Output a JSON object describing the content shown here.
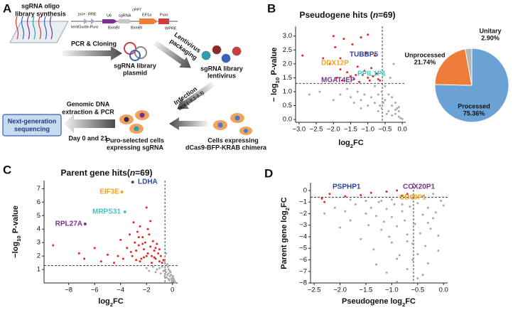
{
  "panel_labels": [
    "A",
    "B",
    "C",
    "D"
  ],
  "diagram": {
    "title": [
      "sgRNA oligo",
      "library synthesis"
    ],
    "vector": [
      "psi+",
      "RRE",
      "U6",
      "sgRNA",
      "cPPT",
      "EF1a",
      "Puro",
      "lentiGuide-Puro",
      "BsmBI",
      "BsmBI",
      "WPRE"
    ],
    "cloning": "PCR & Cloning",
    "plasmid": [
      "sgRNA library",
      "plasmid"
    ],
    "packaging": [
      "Lentivirus",
      "packaging"
    ],
    "lentivirus": [
      "sgRNA library",
      "lentivirus"
    ],
    "infection": [
      "Infection",
      "MOI (~0.2-0.3)"
    ],
    "host_cells": [
      "Cells expressing",
      "dCas9-BFP-KRAB chimera"
    ],
    "selected_cells": [
      "Puro-selected cells",
      "expressing sgRNA"
    ],
    "extraction": [
      "Genomic DNA",
      "extraction & PCR"
    ],
    "timepoints": "Day 0 and 21",
    "sequencing": [
      "Next-generation",
      "sequencing"
    ]
  },
  "chart_data": [
    {
      "type": "scatter",
      "title": [
        "Pseudogene hits (",
        "n",
        "=69)"
      ],
      "xlabel": [
        "log",
        "2",
        "FC"
      ],
      "ylabel": [
        "− log",
        "10",
        " P-value"
      ],
      "xlim": [
        -3.1,
        0.1
      ],
      "ylim": [
        -0.1,
        3.35
      ],
      "xticks": [
        {
          "value": -3,
          "label": "−3.0"
        },
        {
          "value": -2.5,
          "label": "−2.5"
        },
        {
          "value": -2,
          "label": "−2.0"
        },
        {
          "value": -1.5,
          "label": "−1.5"
        },
        {
          "value": -1,
          "label": "−1.0"
        },
        {
          "value": -0.5,
          "label": "−0.5"
        },
        {
          "value": 0,
          "label": "0.0"
        }
      ],
      "yticks": [
        {
          "value": 0,
          "label": "0.0"
        },
        0.5,
        {
          "value": 1,
          "label": "1.0"
        },
        1.5,
        {
          "value": 2,
          "label": "2.0"
        },
        2.5,
        {
          "value": 3,
          "label": "3.0"
        }
      ],
      "thresholds": {
        "x": -0.58,
        "y": 1.3
      },
      "series": [
        {
          "color": "#a9a9a9",
          "x": [
            -2.7,
            -2.4,
            -2.0,
            -1.8,
            -1.6,
            -1.5,
            -1.4,
            -1.3,
            -1.2,
            -1.1,
            -1.0,
            -0.9,
            -0.8,
            -0.7,
            -0.6,
            -0.5,
            -0.4,
            -0.3,
            -0.2,
            -0.1,
            -0.05,
            -0.5,
            -0.4,
            -0.3,
            -0.2,
            -0.1,
            -0.6,
            -0.8,
            -0.7,
            -0.35,
            -0.25,
            -0.15,
            -1.2,
            -0.45,
            -0.55,
            -0.3,
            -0.2,
            -0.1,
            0.0,
            -0.65
          ],
          "y": [
            0.9,
            1.0,
            0.7,
            0.9,
            1.1,
            0.8,
            0.6,
            1.0,
            0.7,
            0.9,
            0.5,
            0.8,
            0.6,
            0.9,
            0.4,
            0.7,
            0.3,
            0.5,
            0.2,
            0.1,
            0.05,
            1.2,
            0.9,
            0.8,
            0.6,
            0.3,
            1.0,
            1.2,
            0.3,
            1.5,
            2.0,
            0.4,
            0.4,
            0.2,
            0.6,
            0.15,
            0.35,
            0.45,
            0.02,
            0.5
          ]
        },
        {
          "color": "#e8281e",
          "x": [
            -2.9,
            -2.1,
            -2.0,
            -1.95,
            -1.9,
            -1.8,
            -1.75,
            -1.7,
            -1.6,
            -1.5,
            -1.45,
            -1.4,
            -1.3,
            -1.25,
            -1.2,
            -1.15,
            -1.1,
            -1.05,
            -1.0,
            -0.95,
            -0.9,
            -0.85,
            -0.8,
            -0.75,
            -0.7,
            -0.65,
            -1.35,
            -1.8,
            -2.3,
            -1.0
          ],
          "y": [
            2.3,
            2.0,
            3.0,
            2.6,
            1.5,
            2.2,
            1.4,
            2.9,
            1.7,
            1.55,
            2.7,
            1.45,
            1.9,
            1.35,
            2.95,
            1.6,
            1.75,
            2.4,
            1.5,
            1.4,
            1.85,
            1.55,
            2.3,
            1.65,
            1.45,
            1.4,
            1.6,
            1.8,
            2.2,
            3.05
          ]
        }
      ],
      "annotations": [
        {
          "text": "TUBBP5",
          "color": "#2b3f9e"
        },
        {
          "text": "DDX12P",
          "color": "#f5a21c"
        },
        {
          "text": "PPIL1P1",
          "color": "#3fc6c0"
        },
        {
          "text": "MGAT4EP",
          "color": "#7b2f92"
        }
      ]
    },
    {
      "type": "pie",
      "categories": [
        "Processed",
        "Unprocessed",
        "Unitary"
      ],
      "values": [
        75.36,
        21.74,
        2.9
      ],
      "value_labels": [
        "75.36%",
        "21.74%",
        "2.90%"
      ],
      "colors": [
        "#6aa2d6",
        "#ef7d3a",
        "#b5b5b5"
      ]
    },
    {
      "type": "scatter",
      "title": [
        "Parent gene hits(",
        "n",
        "=69)"
      ],
      "xlabel": [
        "log",
        "2",
        "FC"
      ],
      "ylabel": [
        "−log",
        "10",
        " P-value"
      ],
      "xlim": [
        -9.9,
        0.4
      ],
      "ylim": [
        0,
        7.6
      ],
      "xticks": [
        {
          "value": -8,
          "label": "−8"
        },
        {
          "value": -6,
          "label": "−6"
        },
        {
          "value": -4,
          "label": "−4"
        },
        {
          "value": -2,
          "label": "−2"
        },
        0
      ],
      "yticks": [
        1,
        2,
        3,
        4,
        5,
        6,
        7
      ],
      "thresholds": {
        "x": -0.58,
        "y": 1.3
      },
      "series": [
        {
          "color": "#a9a9a9",
          "x": [
            -2.0,
            -1.8,
            -1.5,
            -1.3,
            -1.2,
            -1.0,
            -0.9,
            -0.8,
            -0.7,
            -0.6,
            -0.5,
            -0.4,
            -0.3,
            -0.2,
            -0.1,
            0.0,
            0.1,
            0.2,
            -0.5,
            -0.4,
            -0.3,
            -0.2,
            -0.1,
            0.0,
            0.1,
            -0.6,
            -0.45,
            -0.25,
            -0.05,
            0.15,
            -0.35,
            -0.15,
            0.05,
            -0.55,
            -0.3
          ],
          "y": [
            1.1,
            0.9,
            1.2,
            0.8,
            1.0,
            1.1,
            0.7,
            1.2,
            0.9,
            1.6,
            0.8,
            0.6,
            1.0,
            0.5,
            0.3,
            0.2,
            0.1,
            0.05,
            2.2,
            1.4,
            0.7,
            0.9,
            0.6,
            0.4,
            0.3,
            0.5,
            0.4,
            0.2,
            0.1,
            0.15,
            1.2,
            0.8,
            0.5,
            1.0,
            0.3
          ]
        },
        {
          "color": "#e8281e",
          "x": [
            -9.2,
            -7.2,
            -6.8,
            -6.0,
            -5.5,
            -5.0,
            -4.5,
            -4.2,
            -4.0,
            -3.8,
            -3.5,
            -3.3,
            -3.1,
            -3.0,
            -2.9,
            -2.8,
            -2.7,
            -2.6,
            -2.5,
            -2.4,
            -2.3,
            -2.2,
            -2.1,
            -2.0,
            -1.9,
            -1.8,
            -1.7,
            -1.6,
            -1.5,
            -1.4,
            -1.3,
            -1.2,
            -1.1,
            -1.0,
            -0.9,
            -0.8,
            -0.7,
            -2.5,
            -2.2,
            -1.9,
            -1.6,
            -1.3,
            -3.2,
            -2.6,
            -2.0,
            -1.4,
            -1.0,
            -2.8,
            -2.3,
            -1.7
          ],
          "y": [
            2.8,
            2.2,
            1.8,
            2.6,
            1.6,
            2.1,
            1.5,
            2.0,
            3.2,
            1.8,
            2.6,
            3.6,
            2.0,
            4.5,
            3.0,
            2.4,
            3.8,
            2.8,
            4.2,
            1.8,
            3.4,
            2.5,
            3.0,
            5.6,
            2.2,
            3.6,
            2.7,
            2.0,
            3.1,
            2.4,
            1.8,
            2.9,
            2.2,
            1.6,
            2.0,
            1.5,
            1.7,
            1.6,
            1.9,
            4.0,
            1.5,
            2.6,
            2.3,
            3.4,
            2.0,
            1.9,
            2.5,
            1.7,
            2.9,
            4.6
          ]
        }
      ],
      "annotations": [
        {
          "text": "LDHA",
          "color": "#2b4ba0",
          "x": -3.07,
          "y": 7.49
        },
        {
          "text": "EIF3E",
          "color": "#f5a21c",
          "x": -3.9,
          "y": 6.75
        },
        {
          "text": "MRPS31",
          "color": "#3fc6c0",
          "x": -3.67,
          "y": 5.28
        },
        {
          "text": "RPL27A",
          "color": "#7b2f92",
          "x": -6.73,
          "y": 4.38
        }
      ]
    },
    {
      "type": "scatter",
      "xlabel": [
        "Pseudogene log",
        "2",
        "FC"
      ],
      "ylabel": [
        "Parent gene log",
        "2",
        "FC"
      ],
      "xlim": [
        -2.57,
        0.08
      ],
      "ylim": [
        -8,
        0.67
      ],
      "xticks": [
        {
          "value": -2.5,
          "label": "−2.5"
        },
        {
          "value": -2,
          "label": "−2.0"
        },
        {
          "value": -1.5,
          "label": "−1.5"
        },
        {
          "value": -1,
          "label": "−1.0"
        },
        {
          "value": -0.5,
          "label": "−0.5"
        },
        {
          "value": 0,
          "label": "0.0"
        }
      ],
      "yticks": [
        0,
        {
          "value": -1,
          "label": "−1"
        },
        {
          "value": -2,
          "label": "−2"
        },
        {
          "value": -3,
          "label": "−3"
        },
        {
          "value": -4,
          "label": "−4"
        },
        {
          "value": -5,
          "label": "−5"
        },
        {
          "value": -6,
          "label": "−6"
        },
        {
          "value": -7,
          "label": "−7"
        },
        {
          "value": -8,
          "label": "−8"
        }
      ],
      "thresholds": {
        "x": -0.58,
        "y": -0.58
      },
      "series": [
        {
          "color": "#a9a9a9",
          "x": [
            -2.3,
            -2.1,
            -2.0,
            -1.9,
            -1.8,
            -1.7,
            -1.6,
            -1.5,
            -1.45,
            -1.4,
            -1.35,
            -1.3,
            -1.25,
            -1.2,
            -1.15,
            -1.1,
            -1.05,
            -1.0,
            -0.95,
            -0.9,
            -0.85,
            -0.8,
            -0.75,
            -0.7,
            -0.65,
            -0.6,
            -0.55,
            -0.5,
            -0.45,
            -0.4,
            -0.35,
            -0.3,
            -0.25,
            -0.2,
            -0.15,
            -0.1,
            -0.05,
            0.0,
            -1.3,
            -1.1,
            -0.9,
            -0.7,
            -0.5,
            -0.3,
            -0.1,
            -1.2,
            -1.0,
            -0.8,
            -0.6,
            -0.4,
            -0.2,
            -1.5,
            -0.9,
            -0.5,
            -0.6,
            -1.8,
            -0.3,
            -0.7,
            -1.0,
            -0.4
          ],
          "y": [
            -2.0,
            -1.5,
            -3.2,
            -1.8,
            -2.6,
            -1.2,
            -4.2,
            -2.0,
            -3.0,
            -1.5,
            -5.1,
            -2.2,
            -1.0,
            -3.4,
            -2.7,
            -1.6,
            -4.0,
            -2.3,
            -1.2,
            -3.1,
            -5.6,
            -1.8,
            -2.6,
            -4.4,
            -1.4,
            -6.0,
            -2.9,
            -1.1,
            -3.7,
            -2.1,
            -4.8,
            -1.5,
            -3.3,
            -2.4,
            -1.9,
            -5.2,
            -0.9,
            -1.3,
            -6.4,
            -7.1,
            -5.9,
            -6.8,
            -7.6,
            -6.3,
            -3.9,
            -0.9,
            -0.8,
            -1.2,
            -0.7,
            -0.5,
            -0.3,
            -0.9,
            -7.9,
            -5.5,
            -4.6,
            -0.8,
            -2.8,
            -3.8,
            -4.5,
            -7.3
          ]
        },
        {
          "color": "#e8281e",
          "x": [
            -2.35,
            -2.3,
            -2.2,
            -1.9,
            -1.6,
            -1.4,
            -1.1,
            -0.9,
            -0.7,
            -0.8
          ],
          "y": [
            -0.7,
            -1.0,
            -0.3,
            -0.5,
            -0.4,
            -0.2,
            -0.1,
            0.0,
            -0.3,
            -0.45
          ]
        }
      ],
      "annotations": [
        {
          "text": "PSPHP1",
          "color": "#2b3f9e"
        },
        {
          "text": "COX20P1",
          "color": "#7b2f92"
        },
        {
          "text": "CD99P1",
          "color": "#f5a21c"
        }
      ]
    }
  ]
}
